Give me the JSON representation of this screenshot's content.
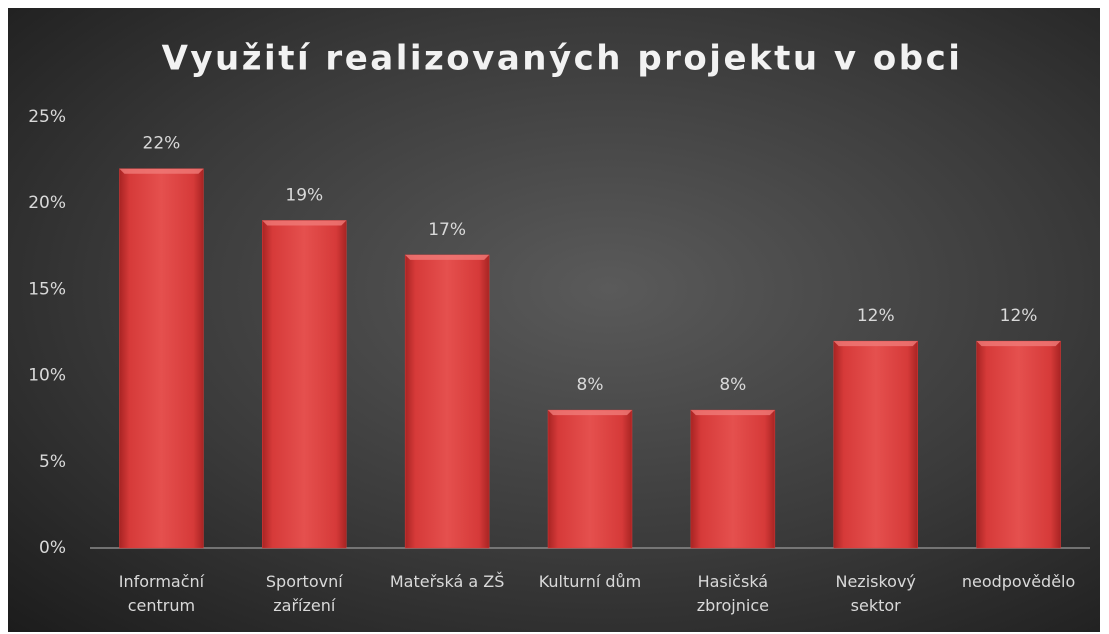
{
  "chart_data": {
    "type": "bar",
    "title": "Využití realizovaných projektu v obci",
    "categories": [
      "Informační centrum",
      "Sportovní zařízení",
      "Mateřská a ZŠ",
      "Kulturní dům",
      "Hasičská zbrojnice",
      "Neziskový sektor",
      "neodpovědělo"
    ],
    "values": [
      22,
      19,
      17,
      8,
      8,
      12,
      12
    ],
    "value_labels": [
      "22%",
      "19%",
      "17%",
      "8%",
      "8%",
      "12%",
      "12%"
    ],
    "color": "#d93b3a",
    "ylim": [
      0,
      25
    ],
    "yticks": [
      {
        "value": 0,
        "label": "0%"
      },
      {
        "value": 5,
        "label": "5%"
      },
      {
        "value": 10,
        "label": "10%"
      },
      {
        "value": 15,
        "label": "15%"
      },
      {
        "value": 20,
        "label": "20%"
      },
      {
        "value": 25,
        "label": "25%"
      }
    ],
    "grid": false
  }
}
